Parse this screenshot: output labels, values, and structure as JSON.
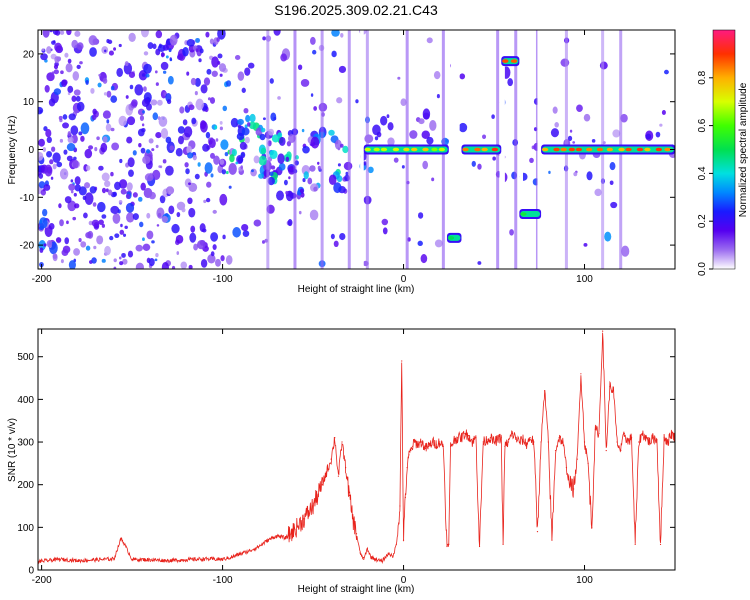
{
  "title": "S196.2025.309.02.21.C43",
  "colors": {
    "snr_line": "#e8231c",
    "frame": "#000000"
  },
  "chart_data": [
    {
      "type": "heatmap",
      "name": "spectrogram",
      "xlabel": "Height of straight line (km)",
      "ylabel": "Frequency (Hz)",
      "xlim": [
        -202,
        150
      ],
      "ylim": [
        -25,
        25
      ],
      "xticks": [
        -200,
        -100,
        0,
        100
      ],
      "xtick_labels": [
        "-200",
        "-100",
        "0",
        "100"
      ],
      "yticks": [
        -20,
        -10,
        0,
        10,
        20
      ],
      "ytick_labels": [
        "-20",
        "-10",
        "0",
        "10",
        "20"
      ],
      "colorbar": {
        "label": "Normalized spectral amplitude",
        "range": [
          0,
          1
        ],
        "ticks": [
          0.0,
          0.2,
          0.4,
          0.6,
          0.8
        ],
        "tick_labels": [
          "0.0",
          "0.2",
          "0.4",
          "0.6",
          "0.8"
        ]
      },
      "tones": [
        {
          "x_start": -22,
          "x_end": 25,
          "freq": 0,
          "amplitude": 0.7
        },
        {
          "x_start": 32,
          "x_end": 54,
          "freq": 0,
          "amplitude": 0.85
        },
        {
          "x_start": 54,
          "x_end": 64,
          "freq": 18.5,
          "amplitude": 0.85
        },
        {
          "x_start": 24,
          "x_end": 32,
          "freq": -18.5,
          "amplitude": 0.55
        },
        {
          "x_start": 64,
          "x_end": 76,
          "freq": -13.5,
          "amplitude": 0.5
        },
        {
          "x_start": 76,
          "x_end": 150,
          "freq": 0,
          "amplitude": 0.85
        }
      ],
      "gaps": [
        {
          "x_start": -24,
          "x_end": -22
        },
        {
          "x_start": 26,
          "x_end": 31
        },
        {
          "x_start": 53,
          "x_end": 56
        },
        {
          "x_start": 64,
          "x_end": 66
        },
        {
          "x_start": 74,
          "x_end": 77
        }
      ]
    },
    {
      "type": "line",
      "name": "snr",
      "xlabel": "Height of straight line (km)",
      "ylabel": "SNR (10 * v/v)",
      "xlim": [
        -202,
        150
      ],
      "ylim": [
        0,
        565
      ],
      "xticks": [
        -200,
        -100,
        0,
        100
      ],
      "xtick_labels": [
        "-200",
        "-100",
        "0",
        "100"
      ],
      "yticks": [
        0,
        100,
        200,
        300,
        400,
        500
      ],
      "ytick_labels": [
        "0",
        "100",
        "200",
        "300",
        "400",
        "500"
      ],
      "series": [
        {
          "name": "SNR",
          "x": [
            -202,
            -190,
            -180,
            -170,
            -160,
            -156,
            -150,
            -140,
            -130,
            -120,
            -110,
            -100,
            -95,
            -90,
            -85,
            -80,
            -75,
            -70,
            -65,
            -60,
            -55,
            -50,
            -45,
            -40,
            -38,
            -36,
            -34,
            -32,
            -30,
            -28,
            -26,
            -24,
            -22,
            -20,
            -18,
            -15,
            -12,
            -10,
            -8,
            -6,
            -4,
            -2,
            -1,
            0,
            1,
            2,
            3,
            4,
            5,
            6,
            8,
            10,
            12,
            14,
            16,
            18,
            20,
            22,
            24,
            25,
            26,
            28,
            30,
            32,
            34,
            36,
            38,
            40,
            42,
            44,
            46,
            48,
            50,
            52,
            54,
            55,
            56,
            58,
            60,
            62,
            64,
            66,
            68,
            70,
            72,
            74,
            76,
            78,
            80,
            82,
            84,
            86,
            88,
            90,
            92,
            94,
            96,
            98,
            100,
            102,
            104,
            106,
            108,
            110,
            112,
            114,
            116,
            118,
            120,
            122,
            124,
            126,
            128,
            130,
            132,
            134,
            136,
            138,
            140,
            142,
            144,
            146,
            148,
            150
          ],
          "values": [
            20,
            25,
            22,
            24,
            26,
            75,
            25,
            24,
            22,
            24,
            26,
            25,
            30,
            38,
            45,
            55,
            70,
            80,
            75,
            95,
            120,
            150,
            200,
            260,
            310,
            220,
            300,
            240,
            175,
            120,
            85,
            40,
            25,
            50,
            30,
            25,
            20,
            30,
            40,
            30,
            60,
            150,
            490,
            70,
            170,
            240,
            270,
            280,
            290,
            300,
            295,
            300,
            285,
            290,
            300,
            295,
            300,
            290,
            55,
            60,
            290,
            305,
            310,
            310,
            320,
            315,
            300,
            310,
            55,
            300,
            305,
            310,
            300,
            305,
            310,
            60,
            290,
            300,
            320,
            310,
            300,
            305,
            295,
            310,
            300,
            90,
            300,
            420,
            300,
            70,
            280,
            310,
            300,
            240,
            200,
            190,
            260,
            460,
            300,
            250,
            100,
            330,
            320,
            560,
            280,
            430,
            420,
            300,
            280,
            320,
            300,
            310,
            60,
            300,
            320,
            310,
            300,
            310,
            305,
            60,
            310,
            300,
            320,
            310
          ]
        }
      ]
    }
  ]
}
